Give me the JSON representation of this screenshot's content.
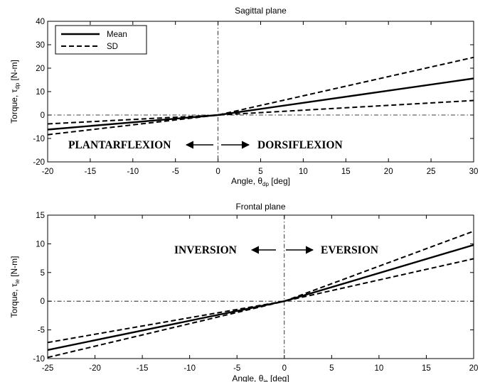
{
  "chart_data": [
    {
      "type": "line",
      "title": "Sagittal plane",
      "ylabel": {
        "pre": "Torque, τ",
        "sub": "dp",
        "post": " [N-m]"
      },
      "xlabel": {
        "pre": "Angle, θ",
        "sub": "dp",
        "post": " [deg]"
      },
      "xlim": [
        -20,
        30
      ],
      "ylim": [
        -20,
        40
      ],
      "xticks": [
        -20,
        -15,
        -10,
        -5,
        0,
        5,
        10,
        15,
        20,
        25,
        30
      ],
      "yticks": [
        -20,
        -10,
        0,
        10,
        20,
        30,
        40
      ],
      "grid": false,
      "legend": {
        "placement": "top-left",
        "items": [
          {
            "label": "Mean",
            "style": "solid"
          },
          {
            "label": "SD",
            "style": "dashed"
          }
        ]
      },
      "series": [
        {
          "name": "Mean",
          "style": "solid",
          "x": [
            -20,
            0,
            30
          ],
          "y": [
            -6.2,
            0,
            15.6
          ]
        },
        {
          "name": "SD",
          "style": "dashed",
          "x": [
            -20,
            0,
            30
          ],
          "y": [
            -8.4,
            0,
            24.6
          ]
        },
        {
          "name": "SD",
          "style": "dashed",
          "x": [
            -20,
            0,
            30
          ],
          "y": [
            -3.8,
            0,
            6.2
          ]
        }
      ],
      "annotations": [
        {
          "text": "PLANTARFLEXION",
          "arrow": "left"
        },
        {
          "text": "DORSIFLEXION",
          "arrow": "right"
        }
      ]
    },
    {
      "type": "line",
      "title": "Frontal plane",
      "ylabel": {
        "pre": "Torque, τ",
        "sub": "ie",
        "post": " [N-m]"
      },
      "xlabel": {
        "pre": "Angle, θ",
        "sub": "ie",
        "post": " [deg]"
      },
      "xlim": [
        -25,
        20
      ],
      "ylim": [
        -10,
        15
      ],
      "xticks": [
        -25,
        -20,
        -15,
        -10,
        -5,
        0,
        5,
        10,
        15,
        20
      ],
      "yticks": [
        -10,
        -5,
        0,
        5,
        10,
        15
      ],
      "grid": false,
      "series": [
        {
          "name": "Mean",
          "style": "solid",
          "x": [
            -25,
            0,
            20
          ],
          "y": [
            -8.5,
            0,
            9.8
          ]
        },
        {
          "name": "SD",
          "style": "dashed",
          "x": [
            -25,
            0,
            20
          ],
          "y": [
            -9.8,
            0,
            12.2
          ]
        },
        {
          "name": "SD",
          "style": "dashed",
          "x": [
            -25,
            0,
            20
          ],
          "y": [
            -7.2,
            0,
            7.4
          ]
        }
      ],
      "annotations": [
        {
          "text": "INVERSION",
          "arrow": "left"
        },
        {
          "text": "EVERSION",
          "arrow": "right"
        }
      ]
    }
  ]
}
